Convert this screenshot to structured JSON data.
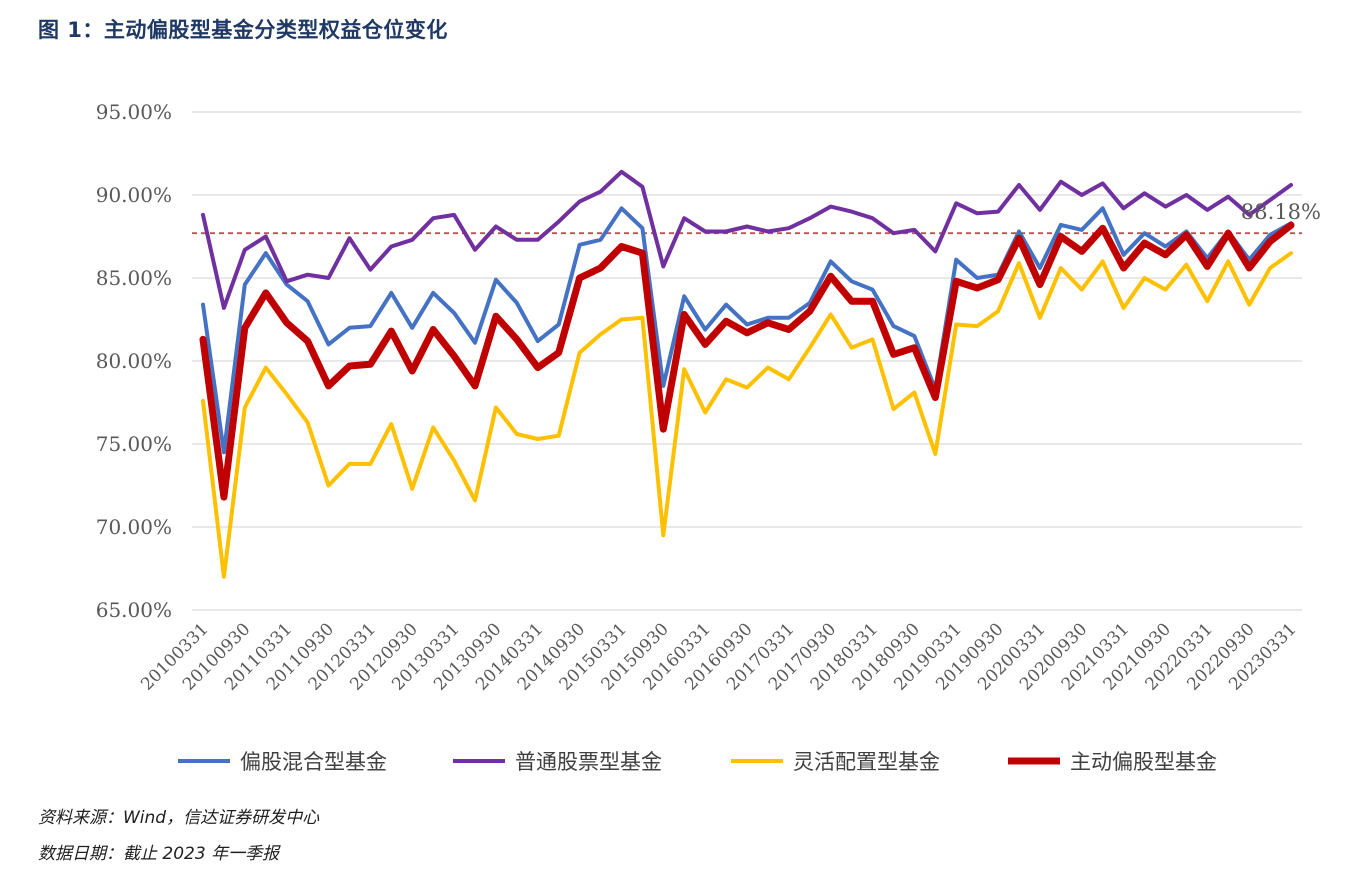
{
  "figure_title": "图 1：主动偏股型基金分类型权益仓位变化",
  "footnotes": {
    "source": "资料来源：Wind，信达证券研发中心",
    "date": "数据日期：截止 2023 年一季报"
  },
  "colors": {
    "hybrid": "#4472c4",
    "stock": "#7030a0",
    "flexible": "#ffc000",
    "active": "#c00000",
    "reference": "#c0504d",
    "grid": "#d9d9d9"
  },
  "chart_data": {
    "type": "line",
    "title": "",
    "xlabel": "",
    "ylabel": "",
    "ylim": [
      65,
      95
    ],
    "yticks": [
      95,
      90,
      85,
      80,
      75,
      70,
      65
    ],
    "ytick_labels": [
      "95.00%",
      "90.00%",
      "85.00%",
      "80.00%",
      "75.00%",
      "70.00%",
      "65.00%"
    ],
    "grid": true,
    "legend_position": "bottom",
    "x": [
      "20100331",
      "20100630",
      "20100930",
      "20101231",
      "20110331",
      "20110630",
      "20110930",
      "20111231",
      "20120331",
      "20120630",
      "20120930",
      "20121231",
      "20130331",
      "20130630",
      "20130930",
      "20131231",
      "20140331",
      "20140630",
      "20140930",
      "20141231",
      "20150331",
      "20150630",
      "20150930",
      "20151231",
      "20160331",
      "20160630",
      "20160930",
      "20161231",
      "20170331",
      "20170630",
      "20170930",
      "20171231",
      "20180331",
      "20180630",
      "20180930",
      "20181231",
      "20190331",
      "20190630",
      "20190930",
      "20191231",
      "20200331",
      "20200630",
      "20200930",
      "20201231",
      "20210331",
      "20210630",
      "20210930",
      "20211231",
      "20220331",
      "20220630",
      "20220930",
      "20221231",
      "20230331"
    ],
    "x_tick_labels": [
      "20100331",
      "20100930",
      "20110331",
      "20110930",
      "20120331",
      "20120930",
      "20130331",
      "20130930",
      "20140331",
      "20140930",
      "20150331",
      "20150930",
      "20160331",
      "20160930",
      "20170331",
      "20170930",
      "20180331",
      "20180930",
      "20190331",
      "20190930",
      "20200331",
      "20200930",
      "20210331",
      "20210930",
      "20220331",
      "20220930",
      "20230331"
    ],
    "reference_line": {
      "value": 87.7,
      "style": "dashed"
    },
    "annotation": {
      "text": "88.18%",
      "x": "20230331",
      "y": 88.18
    },
    "series": [
      {
        "name": "偏股混合型基金",
        "key": "hybrid",
        "values": [
          83.4,
          74.5,
          84.6,
          86.5,
          84.6,
          83.6,
          81.0,
          82.0,
          82.1,
          84.1,
          82.0,
          84.1,
          82.9,
          81.1,
          84.9,
          83.5,
          81.2,
          82.2,
          87.0,
          87.3,
          89.2,
          88.0,
          78.5,
          83.9,
          81.9,
          83.4,
          82.2,
          82.6,
          82.6,
          83.5,
          86.0,
          84.8,
          84.3,
          82.1,
          81.5,
          78.3,
          86.1,
          85.0,
          85.2,
          87.8,
          85.6,
          88.2,
          87.9,
          89.2,
          86.4,
          87.7,
          86.9,
          87.8,
          86.2,
          87.8,
          86.1,
          87.6,
          88.3
        ]
      },
      {
        "name": "普通股票型基金",
        "key": "stock",
        "values": [
          88.8,
          83.2,
          86.7,
          87.5,
          84.8,
          85.2,
          85.0,
          87.4,
          85.5,
          86.9,
          87.3,
          88.6,
          88.8,
          86.7,
          88.1,
          87.3,
          87.3,
          88.4,
          89.6,
          90.2,
          91.4,
          90.5,
          85.7,
          88.6,
          87.8,
          87.8,
          88.1,
          87.8,
          88.0,
          88.6,
          89.3,
          89.0,
          88.6,
          87.7,
          87.9,
          86.6,
          89.5,
          88.9,
          89.0,
          90.6,
          89.1,
          90.8,
          90.0,
          90.7,
          89.2,
          90.1,
          89.3,
          90.0,
          89.1,
          89.9,
          88.8,
          89.7,
          90.6
        ]
      },
      {
        "name": "灵活配置型基金",
        "key": "flexible",
        "values": [
          77.6,
          67.0,
          77.2,
          79.6,
          78.0,
          76.3,
          72.5,
          73.8,
          73.8,
          76.2,
          72.3,
          76.0,
          74.0,
          71.6,
          77.2,
          75.6,
          75.3,
          75.5,
          80.5,
          81.6,
          82.5,
          82.6,
          69.5,
          79.5,
          76.9,
          78.9,
          78.4,
          79.6,
          78.9,
          80.8,
          82.8,
          80.8,
          81.3,
          77.1,
          78.1,
          74.4,
          82.2,
          82.1,
          83.0,
          85.9,
          82.6,
          85.6,
          84.3,
          86.0,
          83.2,
          85.0,
          84.3,
          85.8,
          83.6,
          86.0,
          83.4,
          85.6,
          86.5
        ]
      },
      {
        "name": "主动偏股型基金",
        "key": "active",
        "values": [
          81.3,
          71.8,
          82.0,
          84.1,
          82.3,
          81.2,
          78.5,
          79.7,
          79.8,
          81.8,
          79.4,
          81.9,
          80.3,
          78.5,
          82.7,
          81.3,
          79.6,
          80.5,
          85.0,
          85.6,
          86.9,
          86.5,
          75.9,
          82.8,
          81.0,
          82.4,
          81.7,
          82.3,
          81.9,
          83.0,
          85.1,
          83.6,
          83.6,
          80.4,
          80.8,
          77.8,
          84.8,
          84.4,
          84.9,
          87.4,
          84.6,
          87.5,
          86.6,
          88.0,
          85.6,
          87.1,
          86.4,
          87.6,
          85.7,
          87.7,
          85.6,
          87.2,
          88.18
        ]
      }
    ]
  }
}
